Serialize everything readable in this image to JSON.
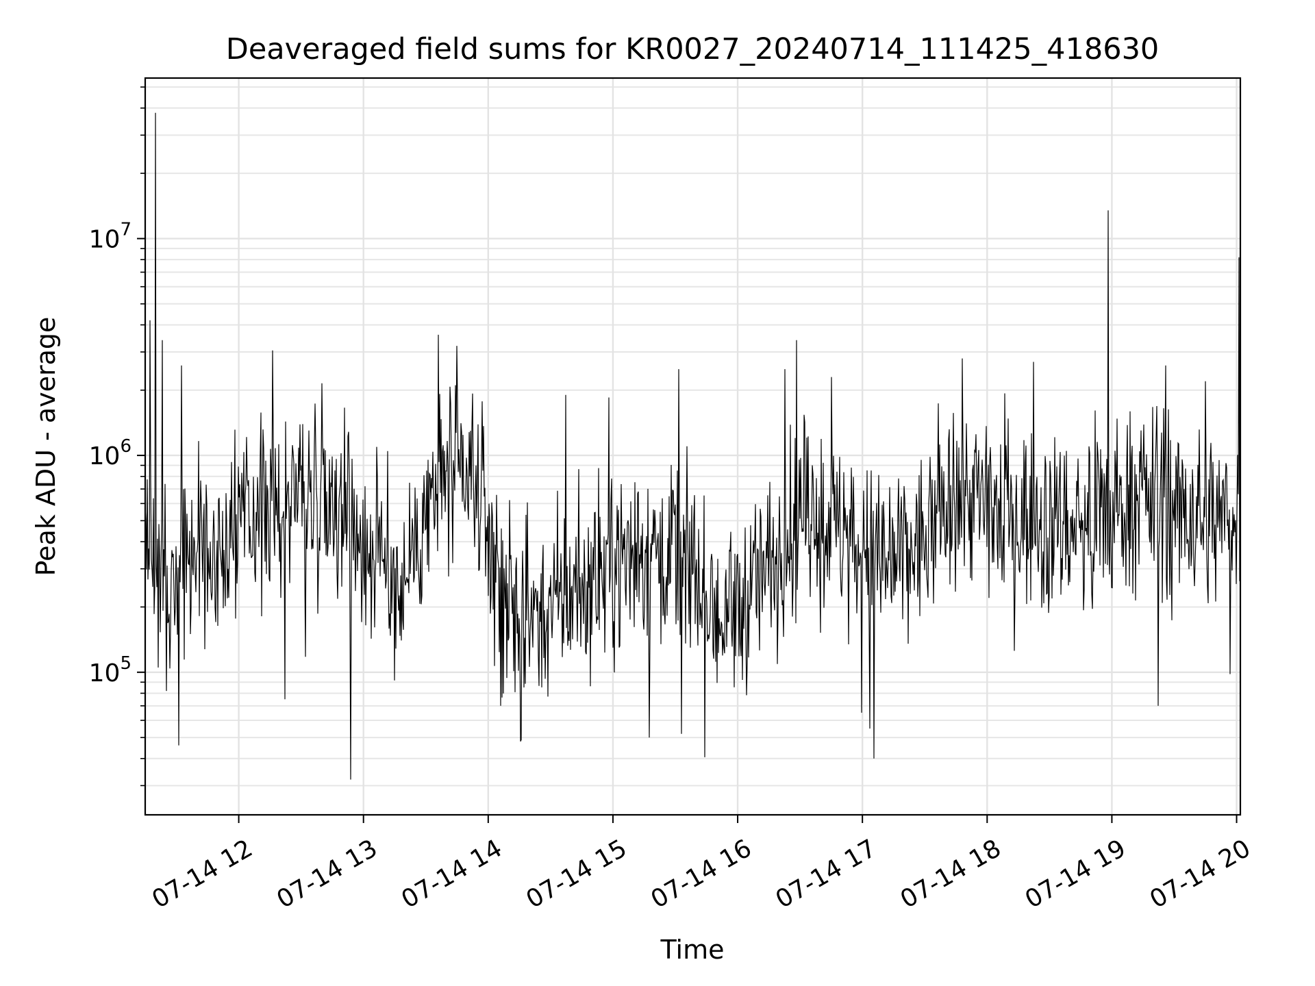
{
  "chart_data": {
    "type": "line",
    "title": "Deaveraged field sums for KR0027_20240714_111425_418630",
    "xlabel": "Time",
    "ylabel": "Peak ADU - average",
    "y_scale": "log",
    "x_range_hours": [
      11.25,
      20.03
    ],
    "ylim": [
      22000,
      55000000
    ],
    "grid": true,
    "x_ticks": [
      {
        "label": "07-14 12",
        "hour": 12
      },
      {
        "label": "07-14 13",
        "hour": 13
      },
      {
        "label": "07-14 14",
        "hour": 14
      },
      {
        "label": "07-14 15",
        "hour": 15
      },
      {
        "label": "07-14 16",
        "hour": 16
      },
      {
        "label": "07-14 17",
        "hour": 17
      },
      {
        "label": "07-14 18",
        "hour": 18
      },
      {
        "label": "07-14 19",
        "hour": 19
      },
      {
        "label": "07-14 20",
        "hour": 20
      }
    ],
    "y_ticks": [
      {
        "base": "10",
        "exp": "5",
        "value": 100000
      },
      {
        "base": "10",
        "exp": "6",
        "value": 1000000
      },
      {
        "base": "10",
        "exp": "7",
        "value": 10000000
      }
    ],
    "series": [
      {
        "color": "#000000",
        "envelope": [
          {
            "hour": 11.25,
            "typical": 400000
          },
          {
            "hour": 11.5,
            "typical": 280000
          },
          {
            "hour": 11.75,
            "typical": 350000
          },
          {
            "hour": 12.0,
            "typical": 500000
          },
          {
            "hour": 12.5,
            "typical": 650000
          },
          {
            "hour": 12.8,
            "typical": 700000
          },
          {
            "hour": 13.0,
            "typical": 400000
          },
          {
            "hour": 13.3,
            "typical": 250000
          },
          {
            "hour": 13.6,
            "typical": 800000
          },
          {
            "hour": 13.9,
            "typical": 700000
          },
          {
            "hour": 14.2,
            "typical": 170000
          },
          {
            "hour": 14.5,
            "typical": 200000
          },
          {
            "hour": 14.8,
            "typical": 260000
          },
          {
            "hour": 15.1,
            "typical": 350000
          },
          {
            "hour": 15.5,
            "typical": 380000
          },
          {
            "hour": 15.9,
            "typical": 160000
          },
          {
            "hour": 16.2,
            "typical": 280000
          },
          {
            "hour": 16.5,
            "typical": 600000
          },
          {
            "hour": 16.9,
            "typical": 400000
          },
          {
            "hour": 17.2,
            "typical": 300000
          },
          {
            "hour": 17.5,
            "typical": 400000
          },
          {
            "hour": 17.8,
            "typical": 700000
          },
          {
            "hour": 18.1,
            "typical": 550000
          },
          {
            "hour": 18.5,
            "typical": 500000
          },
          {
            "hour": 18.9,
            "typical": 450000
          },
          {
            "hour": 19.2,
            "typical": 700000
          },
          {
            "hour": 19.5,
            "typical": 550000
          },
          {
            "hour": 19.8,
            "typical": 500000
          },
          {
            "hour": 20.03,
            "typical": 550000
          }
        ],
        "spikes": [
          {
            "hour": 11.33,
            "value": 38000000
          },
          {
            "hour": 11.29,
            "value": 4200000
          },
          {
            "hour": 11.39,
            "value": 3400000
          },
          {
            "hour": 11.42,
            "value": 82000
          },
          {
            "hour": 11.54,
            "value": 2600000
          },
          {
            "hour": 11.52,
            "value": 46000
          },
          {
            "hour": 12.27,
            "value": 3050000
          },
          {
            "hour": 12.37,
            "value": 75000
          },
          {
            "hour": 12.9,
            "value": 32000
          },
          {
            "hour": 13.6,
            "value": 3600000
          },
          {
            "hour": 13.75,
            "value": 3200000
          },
          {
            "hour": 14.26,
            "value": 48000
          },
          {
            "hour": 14.1,
            "value": 70000
          },
          {
            "hour": 14.62,
            "value": 1900000
          },
          {
            "hour": 14.97,
            "value": 1850000
          },
          {
            "hour": 15.53,
            "value": 2500000
          },
          {
            "hour": 15.29,
            "value": 50000
          },
          {
            "hour": 15.55,
            "value": 52000
          },
          {
            "hour": 16.47,
            "value": 3400000
          },
          {
            "hour": 16.38,
            "value": 2500000
          },
          {
            "hour": 16.75,
            "value": 2300000
          },
          {
            "hour": 17.09,
            "value": 40000
          },
          {
            "hour": 17.06,
            "value": 55000
          },
          {
            "hour": 17.8,
            "value": 2800000
          },
          {
            "hour": 18.37,
            "value": 2700000
          },
          {
            "hour": 18.97,
            "value": 13500000
          },
          {
            "hour": 19.43,
            "value": 2600000
          },
          {
            "hour": 19.37,
            "value": 70000
          },
          {
            "hour": 19.75,
            "value": 2200000
          },
          {
            "hour": 19.95,
            "value": 98000
          },
          {
            "hour": 20.02,
            "value": 8200000
          }
        ]
      }
    ]
  }
}
